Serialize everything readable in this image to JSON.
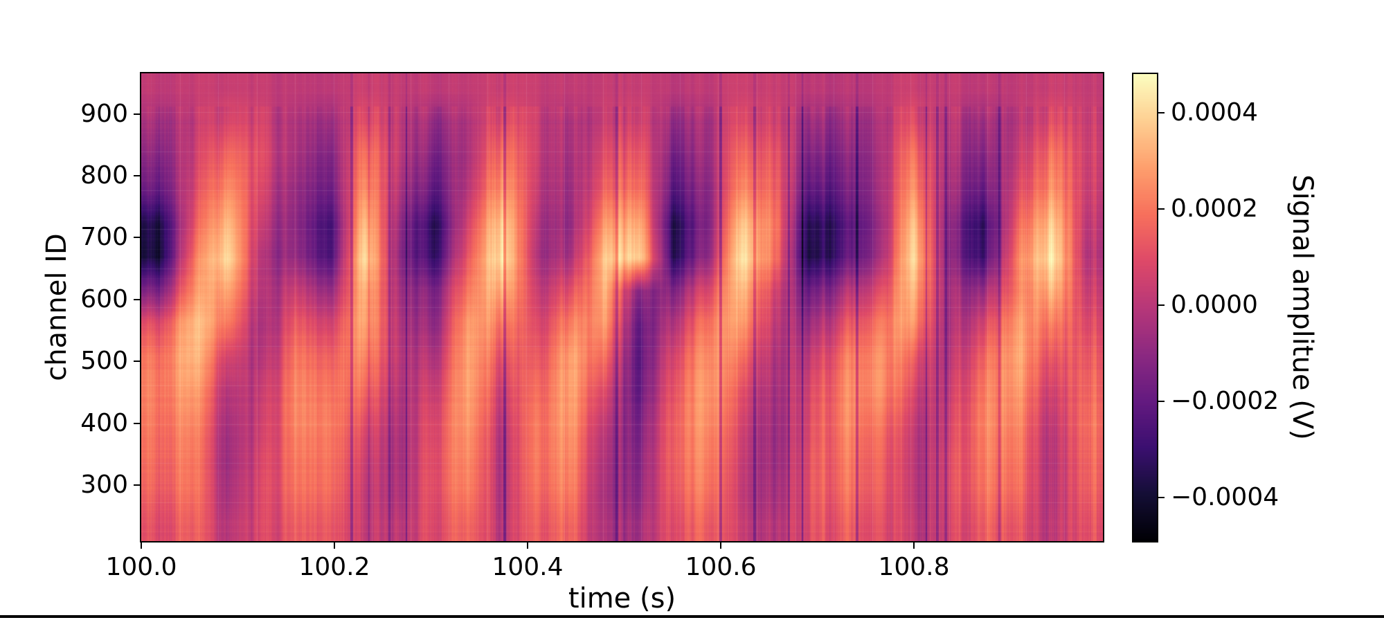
{
  "chart_data": {
    "type": "heatmap",
    "title": "",
    "xlabel": "time (s)",
    "ylabel": "channel ID",
    "colorbar_label": "Signal amplitue (V)",
    "x_range": [
      100.0,
      100.995
    ],
    "y_range": [
      210,
      966
    ],
    "value_range": [
      -0.00049,
      0.00048
    ],
    "x_ticks": [
      "100.0",
      "100.2",
      "100.4",
      "100.6",
      "100.8"
    ],
    "x_tick_values": [
      100.0,
      100.2,
      100.4,
      100.6,
      100.8
    ],
    "y_ticks": [
      "900",
      "800",
      "700",
      "600",
      "500",
      "400",
      "300"
    ],
    "y_tick_values": [
      900,
      800,
      700,
      600,
      500,
      400,
      300
    ],
    "colorbar_ticks": [
      "0.0004",
      "0.0002",
      "0.0000",
      "−0.0002",
      "−0.0004"
    ],
    "colorbar_tick_values": [
      0.0004,
      0.0002,
      0.0,
      -0.0002,
      -0.0004
    ],
    "grid_on": false,
    "legend": "none",
    "colormap": "magma",
    "colormap_stops": [
      [
        0.0,
        "#000004"
      ],
      [
        0.1,
        "#140e36"
      ],
      [
        0.2,
        "#3b0f70"
      ],
      [
        0.3,
        "#641a80"
      ],
      [
        0.4,
        "#8c2981"
      ],
      [
        0.5,
        "#b73779"
      ],
      [
        0.6,
        "#de4968"
      ],
      [
        0.7,
        "#f7705c"
      ],
      [
        0.8,
        "#fe9f6d"
      ],
      [
        0.9,
        "#fecf92"
      ],
      [
        1.0,
        "#fcfdbf"
      ]
    ],
    "grid_note": "coarse 14x28 matrix of normalized colormap positions (0=min=-0.00049V, 1=max=0.00048V); rows top(ch~966) to bottom(ch~210), cols left(100.0s) to right(~101.0s)",
    "grid": [
      [
        0.52,
        0.53,
        0.55,
        0.53,
        0.52,
        0.51,
        0.55,
        0.53,
        0.52,
        0.52,
        0.55,
        0.53,
        0.52,
        0.54,
        0.54,
        0.51,
        0.52,
        0.55,
        0.54,
        0.51,
        0.51,
        0.52,
        0.55,
        0.53,
        0.51,
        0.53,
        0.55,
        0.53
      ],
      [
        0.45,
        0.5,
        0.62,
        0.55,
        0.48,
        0.42,
        0.62,
        0.52,
        0.42,
        0.46,
        0.62,
        0.52,
        0.46,
        0.56,
        0.58,
        0.42,
        0.46,
        0.6,
        0.56,
        0.42,
        0.44,
        0.48,
        0.62,
        0.5,
        0.42,
        0.52,
        0.62,
        0.55
      ],
      [
        0.38,
        0.52,
        0.72,
        0.58,
        0.46,
        0.35,
        0.72,
        0.52,
        0.35,
        0.45,
        0.72,
        0.52,
        0.44,
        0.62,
        0.66,
        0.34,
        0.44,
        0.68,
        0.62,
        0.34,
        0.38,
        0.46,
        0.72,
        0.48,
        0.35,
        0.55,
        0.72,
        0.56
      ],
      [
        0.3,
        0.55,
        0.8,
        0.55,
        0.42,
        0.3,
        0.78,
        0.48,
        0.28,
        0.48,
        0.8,
        0.5,
        0.42,
        0.68,
        0.72,
        0.27,
        0.4,
        0.75,
        0.65,
        0.26,
        0.33,
        0.45,
        0.78,
        0.45,
        0.28,
        0.6,
        0.78,
        0.55
      ],
      [
        0.12,
        0.6,
        0.9,
        0.5,
        0.4,
        0.2,
        0.88,
        0.42,
        0.15,
        0.55,
        0.92,
        0.46,
        0.4,
        0.8,
        0.85,
        0.14,
        0.38,
        0.88,
        0.7,
        0.12,
        0.25,
        0.42,
        0.88,
        0.4,
        0.15,
        0.68,
        0.9,
        0.52
      ],
      [
        0.1,
        0.68,
        0.97,
        0.45,
        0.42,
        0.22,
        0.95,
        0.4,
        0.18,
        0.62,
        0.97,
        0.44,
        0.45,
        0.9,
        0.93,
        0.16,
        0.42,
        0.95,
        0.68,
        0.1,
        0.28,
        0.45,
        0.93,
        0.4,
        0.18,
        0.75,
        0.97,
        0.5
      ],
      [
        0.35,
        0.75,
        0.85,
        0.45,
        0.55,
        0.4,
        0.85,
        0.45,
        0.35,
        0.7,
        0.85,
        0.5,
        0.6,
        0.85,
        0.4,
        0.38,
        0.6,
        0.85,
        0.55,
        0.3,
        0.48,
        0.6,
        0.85,
        0.45,
        0.4,
        0.75,
        0.85,
        0.55
      ],
      [
        0.6,
        0.85,
        0.75,
        0.42,
        0.65,
        0.55,
        0.82,
        0.48,
        0.4,
        0.78,
        0.72,
        0.55,
        0.72,
        0.8,
        0.3,
        0.5,
        0.72,
        0.78,
        0.5,
        0.42,
        0.62,
        0.72,
        0.78,
        0.45,
        0.55,
        0.82,
        0.72,
        0.6
      ],
      [
        0.7,
        0.85,
        0.6,
        0.45,
        0.72,
        0.65,
        0.75,
        0.5,
        0.48,
        0.8,
        0.62,
        0.6,
        0.8,
        0.7,
        0.28,
        0.6,
        0.78,
        0.68,
        0.46,
        0.52,
        0.72,
        0.78,
        0.65,
        0.48,
        0.65,
        0.85,
        0.62,
        0.65
      ],
      [
        0.72,
        0.8,
        0.52,
        0.5,
        0.75,
        0.7,
        0.68,
        0.48,
        0.55,
        0.8,
        0.55,
        0.65,
        0.8,
        0.6,
        0.3,
        0.65,
        0.8,
        0.6,
        0.44,
        0.58,
        0.75,
        0.78,
        0.58,
        0.52,
        0.7,
        0.82,
        0.55,
        0.68
      ],
      [
        0.7,
        0.75,
        0.48,
        0.52,
        0.75,
        0.72,
        0.6,
        0.46,
        0.6,
        0.78,
        0.5,
        0.68,
        0.78,
        0.52,
        0.35,
        0.68,
        0.78,
        0.55,
        0.42,
        0.6,
        0.75,
        0.72,
        0.52,
        0.55,
        0.72,
        0.78,
        0.5,
        0.7
      ],
      [
        0.68,
        0.72,
        0.46,
        0.55,
        0.72,
        0.7,
        0.55,
        0.45,
        0.62,
        0.75,
        0.48,
        0.68,
        0.75,
        0.48,
        0.38,
        0.68,
        0.75,
        0.52,
        0.42,
        0.62,
        0.72,
        0.68,
        0.5,
        0.58,
        0.7,
        0.75,
        0.48,
        0.68
      ],
      [
        0.65,
        0.7,
        0.48,
        0.56,
        0.7,
        0.68,
        0.52,
        0.46,
        0.62,
        0.72,
        0.48,
        0.66,
        0.72,
        0.46,
        0.4,
        0.66,
        0.72,
        0.5,
        0.44,
        0.62,
        0.7,
        0.66,
        0.5,
        0.58,
        0.68,
        0.72,
        0.48,
        0.66
      ],
      [
        0.6,
        0.65,
        0.52,
        0.56,
        0.65,
        0.63,
        0.52,
        0.5,
        0.6,
        0.66,
        0.5,
        0.62,
        0.66,
        0.48,
        0.45,
        0.62,
        0.66,
        0.52,
        0.48,
        0.6,
        0.65,
        0.62,
        0.52,
        0.56,
        0.63,
        0.66,
        0.5,
        0.62
      ]
    ]
  },
  "decor": {
    "bottom_bar_color": "#000000",
    "frame_color": "#000000",
    "background_color": "#ffffff"
  }
}
